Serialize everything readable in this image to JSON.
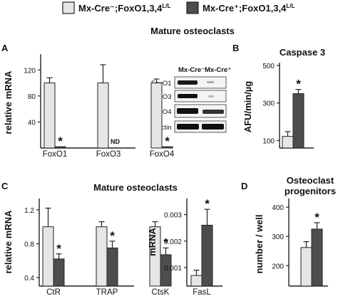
{
  "colors": {
    "control": "#e6e6e6",
    "ko": "#4d4d4d",
    "stroke": "#222222"
  },
  "legend": {
    "items": [
      {
        "label": "Mx-Cre⁻;FoxO1,3,4L/L",
        "color": "#e6e6e6",
        "sup": "L/L"
      },
      {
        "label": "Mx-Cre⁺;FoxO1,3,4L/L",
        "color": "#4d4d4d",
        "sup": "L/L"
      }
    ],
    "text1_main": "Mx-Cre⁻;FoxO1,3,4",
    "text2_main": "Mx-Cre⁺;FoxO1,3,4",
    "sup": "L/L"
  },
  "titles": {
    "top": "Mature osteoclasts",
    "bottom": "Mature osteoclasts"
  },
  "panels": {
    "A": "A",
    "B": "B",
    "C": "C",
    "D": "D"
  },
  "blot": {
    "headers": [
      "Mx-Cre⁻",
      "Mx-Cre⁺"
    ],
    "rows": [
      "FoxO1",
      "FoxO3",
      "FoxO4",
      "β-actin"
    ]
  },
  "chart_data": [
    {
      "id": "A",
      "type": "bar",
      "ylabel": "relative mRNA",
      "ylim": [
        0,
        140
      ],
      "yticks": [
        40,
        80,
        120
      ],
      "categories": [
        "FoxO1",
        "FoxO3",
        "FoxO4"
      ],
      "series": [
        {
          "values": [
            100,
            100,
            100
          ],
          "errors": [
            8,
            28,
            6
          ]
        },
        {
          "values": [
            2,
            0,
            2
          ],
          "errors": [
            0,
            0,
            0
          ]
        }
      ],
      "annotations": [
        "*",
        "ND",
        "*"
      ]
    },
    {
      "id": "B",
      "type": "bar",
      "title": "Caspase 3",
      "ylabel": "AFU/min/µg",
      "ylim": [
        60,
        500
      ],
      "yticks": [
        100,
        300,
        500
      ],
      "categories": [
        ""
      ],
      "series": [
        {
          "values": [
            122
          ],
          "errors": [
            25
          ]
        },
        {
          "values": [
            350
          ],
          "errors": [
            22
          ]
        }
      ],
      "annotations": [
        "*"
      ]
    },
    {
      "id": "C1",
      "type": "bar",
      "ylabel": "relative mRNA",
      "ylim": [
        0.3,
        1.3
      ],
      "yticks": [
        0.4,
        0.8,
        1.2
      ],
      "categories": [
        "CtR",
        "TRAP",
        "CtsK"
      ],
      "series": [
        {
          "values": [
            1.0,
            1.0,
            1.0
          ],
          "errors": [
            0.22,
            0.06,
            0.06
          ]
        },
        {
          "values": [
            0.62,
            0.75,
            0.67
          ],
          "errors": [
            0.06,
            0.08,
            0.08
          ]
        }
      ],
      "annotations": [
        "*",
        "*",
        "*"
      ]
    },
    {
      "id": "C2",
      "type": "bar",
      "ylabel": "mRNA",
      "ylim": [
        0.0003,
        0.0035
      ],
      "yticks": [
        0.001,
        0.002,
        0.003
      ],
      "ytick_labels": [
        "0.001",
        "0.002",
        "0.003"
      ],
      "categories": [
        "FasL"
      ],
      "series": [
        {
          "values": [
            0.0007
          ],
          "errors": [
            0.0002
          ]
        },
        {
          "values": [
            0.0026
          ],
          "errors": [
            0.0006
          ]
        }
      ],
      "annotations": [
        "*"
      ]
    },
    {
      "id": "D",
      "type": "bar",
      "title": "Osteoclast progenitors",
      "title_lines": [
        "Osteoclast",
        "progenitors"
      ],
      "ylabel": "number / well",
      "ylim": [
        130,
        420
      ],
      "yticks": [
        200,
        300,
        400
      ],
      "categories": [
        ""
      ],
      "series": [
        {
          "values": [
            262
          ],
          "errors": [
            20
          ]
        },
        {
          "values": [
            325
          ],
          "errors": [
            22
          ]
        }
      ],
      "annotations": [
        "*"
      ]
    }
  ]
}
